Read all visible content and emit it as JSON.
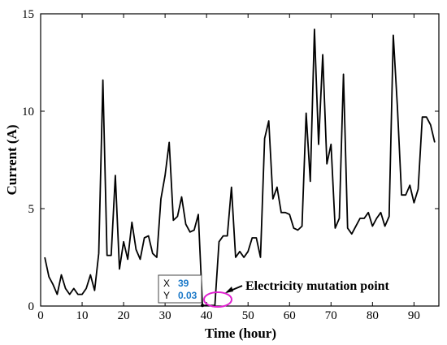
{
  "chart_data": {
    "type": "line",
    "xlabel": "Time (hour)",
    "ylabel": "Current (A)",
    "xlim": [
      0,
      96
    ],
    "ylim": [
      0,
      15
    ],
    "xticks": [
      0,
      10,
      20,
      30,
      40,
      50,
      60,
      70,
      80,
      90
    ],
    "yticks": [
      0,
      5,
      10,
      15
    ],
    "grid": false,
    "series": [
      {
        "x": [
          1,
          2,
          3,
          4,
          5,
          6,
          7,
          8,
          9,
          10,
          11,
          12,
          13,
          14,
          15,
          16,
          17,
          18,
          19,
          20,
          21,
          22,
          23,
          24,
          25,
          26,
          27,
          28,
          29,
          30,
          31,
          32,
          33,
          34,
          35,
          36,
          37,
          38,
          39,
          40,
          41,
          42,
          43,
          44,
          45,
          46,
          47,
          48,
          49,
          50,
          51,
          52,
          53,
          54,
          55,
          56,
          57,
          58,
          59,
          60,
          61,
          62,
          63,
          64,
          65,
          66,
          67,
          68,
          69,
          70,
          71,
          72,
          73,
          74,
          75,
          76,
          77,
          78,
          79,
          80,
          81,
          82,
          83,
          84,
          85,
          86,
          87,
          88,
          89,
          90,
          91,
          92,
          93,
          94,
          95
        ],
        "y": [
          2.5,
          1.5,
          1.1,
          0.6,
          1.6,
          0.9,
          0.6,
          0.9,
          0.6,
          0.6,
          0.9,
          1.6,
          0.8,
          2.7,
          11.6,
          2.6,
          2.6,
          6.7,
          1.9,
          3.3,
          2.4,
          4.3,
          2.9,
          2.4,
          3.5,
          3.6,
          2.7,
          2.5,
          5.5,
          6.7,
          8.4,
          4.4,
          4.6,
          5.6,
          4.2,
          3.8,
          3.9,
          4.7,
          0.03,
          0.03,
          0.03,
          0.03,
          3.3,
          3.6,
          3.6,
          6.1,
          2.5,
          2.8,
          2.5,
          2.8,
          3.5,
          3.5,
          2.5,
          8.6,
          9.5,
          5.5,
          6.1,
          4.8,
          4.8,
          4.7,
          4.0,
          3.9,
          4.1,
          9.9,
          6.4,
          14.2,
          8.3,
          12.9,
          7.3,
          8.3,
          4.0,
          4.5,
          11.9,
          4.0,
          3.7,
          4.1,
          4.5,
          4.5,
          4.8,
          4.1,
          4.5,
          4.8,
          4.1,
          4.6,
          13.9,
          10.2,
          5.7,
          5.7,
          6.2,
          5.3,
          6.0,
          9.7,
          9.7,
          9.3,
          8.4
        ]
      }
    ],
    "datatip": {
      "x_key": "X",
      "x_value": "39",
      "y_key": "Y",
      "y_value": "0.03"
    },
    "annotation": {
      "text": "Electricity mutation point",
      "marker": "ellipse",
      "marker_color": "#e020d0",
      "x": 42,
      "y": 0.3
    }
  }
}
